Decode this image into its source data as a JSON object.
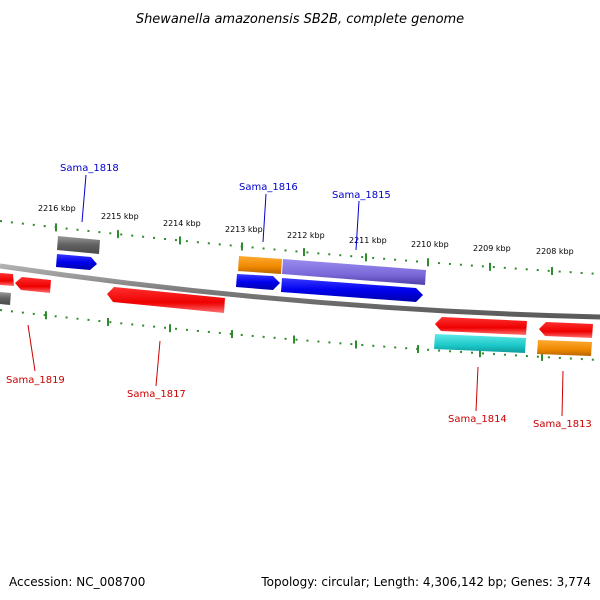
{
  "title": "Shewanella amazonensis SB2B, complete genome",
  "footer": {
    "accession": "Accession: NC_008700",
    "summary": "Topology: circular; Length: 4,306,142 bp; Genes: 3,774"
  },
  "colors": {
    "backbone": "#808080",
    "tick": "#2e8b2e",
    "label_blue": "#0000cc",
    "label_red": "#cc0000",
    "gray": "#606060",
    "blue": "#0000ee",
    "red": "#ee0000",
    "orange": "#ee8800",
    "purple": "#7a68d8",
    "cyan": "#1cc8c8"
  },
  "ticks": [
    {
      "label": "2216 kbp"
    },
    {
      "label": "2215 kbp"
    },
    {
      "label": "2214 kbp"
    },
    {
      "label": "2213 kbp"
    },
    {
      "label": "2212 kbp"
    },
    {
      "label": "2211 kbp"
    },
    {
      "label": "2210 kbp"
    },
    {
      "label": "2209 kbp"
    },
    {
      "label": "2208 kbp"
    }
  ],
  "gene_labels": [
    {
      "id": "sama1818",
      "text": "Sama_1818",
      "color": "blue"
    },
    {
      "id": "sama1816",
      "text": "Sama_1816",
      "color": "blue"
    },
    {
      "id": "sama1815",
      "text": "Sama_1815",
      "color": "blue"
    },
    {
      "id": "sama1819",
      "text": "Sama_1819",
      "color": "red"
    },
    {
      "id": "sama1817",
      "text": "Sama_1817",
      "color": "red"
    },
    {
      "id": "sama1814",
      "text": "Sama_1814",
      "color": "red"
    },
    {
      "id": "sama1813",
      "text": "Sama_1813",
      "color": "red"
    }
  ]
}
